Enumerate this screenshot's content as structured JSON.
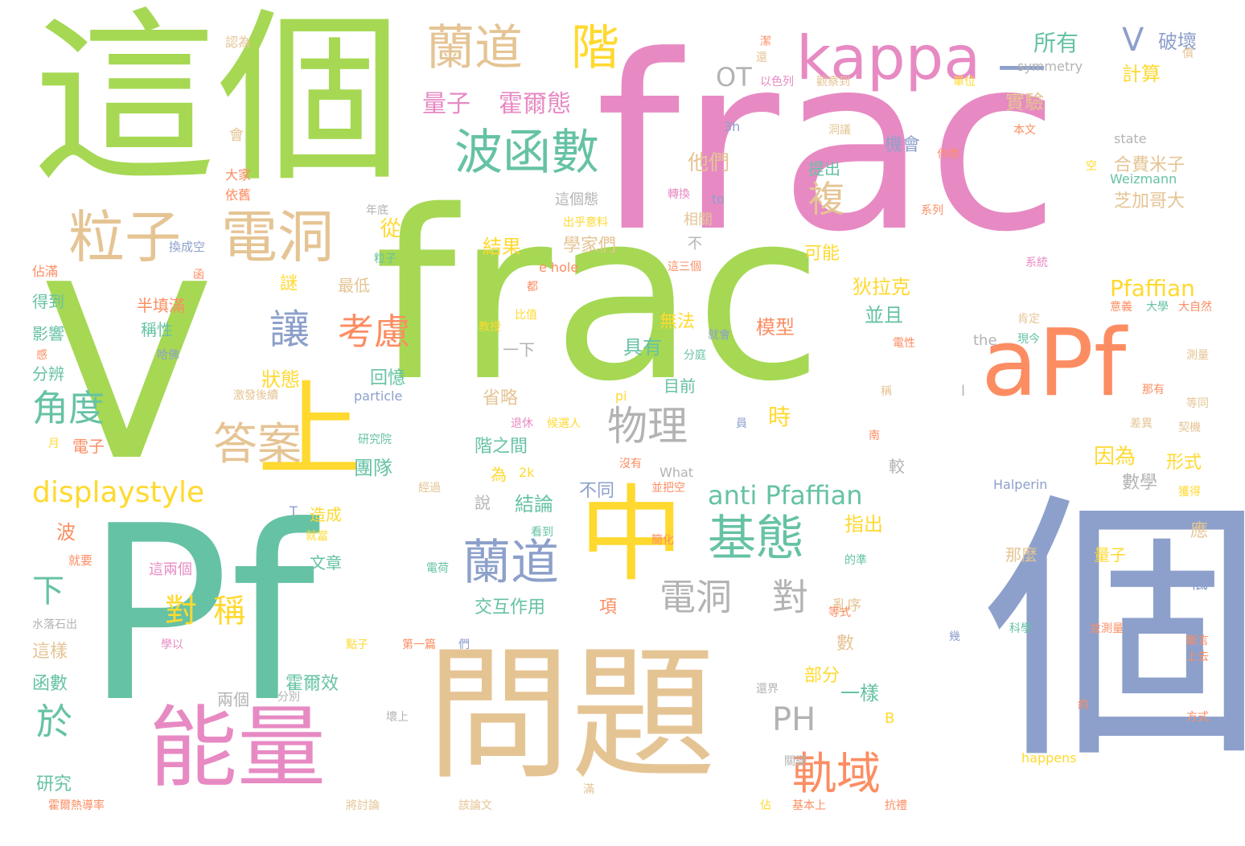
{
  "palette": {
    "green": "#a6d854",
    "teal": "#66c2a5",
    "pink": "#e78ac3",
    "blue": "#8da0cb",
    "tan": "#e5c494",
    "yellow": "#ffd92f",
    "orange": "#fc8d62",
    "gray": "#b3b3b3"
  },
  "words": [
    {
      "text": "frac"
    },
    {
      "text": "V"
    },
    {
      "text": "frac"
    },
    {
      "text": "Pf"
    },
    {
      "text": "個"
    },
    {
      "text": "這個"
    },
    {
      "text": "問題"
    },
    {
      "text": "能量"
    },
    {
      "text": "中"
    },
    {
      "text": "上"
    },
    {
      "text": "aPf"
    },
    {
      "text": "kappa"
    },
    {
      "text": "一"
    },
    {
      "text": "粒子"
    },
    {
      "text": "電洞"
    },
    {
      "text": "蘭道"
    },
    {
      "text": "階"
    },
    {
      "text": "波函數"
    },
    {
      "text": "蘭道"
    },
    {
      "text": "基態"
    },
    {
      "text": "電洞"
    },
    {
      "text": "對"
    },
    {
      "text": "答案"
    },
    {
      "text": "軌域"
    },
    {
      "text": "物理"
    },
    {
      "text": "讓"
    },
    {
      "text": "考慮"
    },
    {
      "text": "角度"
    },
    {
      "text": "displaystyle"
    },
    {
      "text": "anti Pfaffian"
    },
    {
      "text": "對"
    },
    {
      "text": "稱"
    },
    {
      "text": "於"
    },
    {
      "text": "下"
    },
    {
      "text": "PH"
    },
    {
      "text": "複"
    },
    {
      "text": "V"
    },
    {
      "text": "所有"
    },
    {
      "text": "破壞"
    },
    {
      "text": "量子"
    },
    {
      "text": "霍爾態"
    },
    {
      "text": "OT"
    },
    {
      "text": "Pfaffian"
    },
    {
      "text": "時"
    },
    {
      "text": "狀態"
    },
    {
      "text": "實驗"
    },
    {
      "text": "計算"
    },
    {
      "text": "他們"
    },
    {
      "text": "合費米子"
    },
    {
      "text": "芝加哥大"
    },
    {
      "text": "結果"
    },
    {
      "text": "學家們"
    },
    {
      "text": "因為"
    },
    {
      "text": "形式"
    },
    {
      "text": "數學"
    },
    {
      "text": "模型"
    },
    {
      "text": "並且"
    },
    {
      "text": "狄拉克"
    },
    {
      "text": "具有"
    },
    {
      "text": "結論"
    },
    {
      "text": "團隊"
    },
    {
      "text": "指出"
    },
    {
      "text": "一樣"
    },
    {
      "text": "交互作用"
    },
    {
      "text": "霍爾效"
    },
    {
      "text": "部分"
    },
    {
      "text": "研究"
    },
    {
      "text": "無法"
    },
    {
      "text": "目前"
    },
    {
      "text": "回憶"
    },
    {
      "text": "從"
    },
    {
      "text": "最低"
    },
    {
      "text": "省略"
    },
    {
      "text": "階之間"
    },
    {
      "text": "不同"
    },
    {
      "text": "為"
    },
    {
      "text": "說"
    },
    {
      "text": "波"
    },
    {
      "text": "影響"
    },
    {
      "text": "稱性"
    },
    {
      "text": "半填滿"
    },
    {
      "text": "得到"
    },
    {
      "text": "分辨"
    },
    {
      "text": "謎"
    },
    {
      "text": "相關"
    },
    {
      "text": "可能"
    },
    {
      "text": "提出"
    },
    {
      "text": "機會"
    },
    {
      "text": "這個態"
    },
    {
      "text": "那麼"
    },
    {
      "text": "量子"
    },
    {
      "text": "應"
    },
    {
      "text": "低"
    },
    {
      "text": "文章"
    },
    {
      "text": "項"
    },
    {
      "text": "亂序"
    },
    {
      "text": "數"
    },
    {
      "text": "電子"
    },
    {
      "text": "這樣"
    },
    {
      "text": "函數"
    },
    {
      "text": "兩個"
    },
    {
      "text": "這兩個"
    },
    {
      "text": "造成"
    },
    {
      "text": "一下"
    },
    {
      "text": "較"
    },
    {
      "text": "不"
    },
    {
      "text": "state"
    },
    {
      "text": "Weizmann"
    },
    {
      "text": "symmetry"
    },
    {
      "text": "Halperin"
    },
    {
      "text": "happens"
    },
    {
      "text": "particle"
    },
    {
      "text": "What"
    },
    {
      "text": "the"
    },
    {
      "text": "pi"
    },
    {
      "text": "to"
    },
    {
      "text": "3h"
    },
    {
      "text": "2k"
    },
    {
      "text": "e hole"
    },
    {
      "text": "T"
    },
    {
      "text": "l"
    },
    {
      "text": "B"
    },
    {
      "text": "認為"
    },
    {
      "text": "會"
    },
    {
      "text": "大家"
    },
    {
      "text": "依舊"
    },
    {
      "text": "年底"
    },
    {
      "text": "換成空"
    },
    {
      "text": "佔滿"
    },
    {
      "text": "函"
    },
    {
      "text": "粒子"
    },
    {
      "text": "感"
    },
    {
      "text": "哈佛"
    },
    {
      "text": "激發後續"
    },
    {
      "text": "月"
    },
    {
      "text": "研究院"
    },
    {
      "text": "經過"
    },
    {
      "text": "就當"
    },
    {
      "text": "就要"
    },
    {
      "text": "水落石出"
    },
    {
      "text": "學以"
    },
    {
      "text": "點子"
    },
    {
      "text": "第一篇"
    },
    {
      "text": "們"
    },
    {
      "text": "分別"
    },
    {
      "text": "壞上"
    },
    {
      "text": "將討論"
    },
    {
      "text": "該論文"
    },
    {
      "text": "霍爾熱導率"
    },
    {
      "text": "滿"
    },
    {
      "text": "電荷"
    },
    {
      "text": "簡化"
    },
    {
      "text": "並把空"
    },
    {
      "text": "看到"
    },
    {
      "text": "沒有"
    },
    {
      "text": "候選人"
    },
    {
      "text": "退休"
    },
    {
      "text": "比值"
    },
    {
      "text": "教授"
    },
    {
      "text": "都"
    },
    {
      "text": "出乎意料"
    },
    {
      "text": "轉換"
    },
    {
      "text": "這三個"
    },
    {
      "text": "以色列"
    },
    {
      "text": "觀察到"
    },
    {
      "text": "潔"
    },
    {
      "text": "單位"
    },
    {
      "text": "洞議"
    },
    {
      "text": "本文"
    },
    {
      "text": "作用"
    },
    {
      "text": "系列"
    },
    {
      "text": "系統"
    },
    {
      "text": "空"
    },
    {
      "text": "大學"
    },
    {
      "text": "大自然"
    },
    {
      "text": "意義"
    },
    {
      "text": "肯定"
    },
    {
      "text": "現今"
    },
    {
      "text": "電性"
    },
    {
      "text": "稱"
    },
    {
      "text": "南"
    },
    {
      "text": "測量"
    },
    {
      "text": "等同"
    },
    {
      "text": "那有"
    },
    {
      "text": "差異"
    },
    {
      "text": "契機"
    },
    {
      "text": "獲得"
    },
    {
      "text": "幾"
    },
    {
      "text": "科學"
    },
    {
      "text": "並測量"
    },
    {
      "text": "斷言"
    },
    {
      "text": "上去"
    },
    {
      "text": "約"
    },
    {
      "text": "方式"
    },
    {
      "text": "的準"
    },
    {
      "text": "等式"
    },
    {
      "text": "就會"
    },
    {
      "text": "分庭"
    },
    {
      "text": "員"
    },
    {
      "text": "佔"
    },
    {
      "text": "關鍵"
    },
    {
      "text": "還界"
    },
    {
      "text": "基本上"
    },
    {
      "text": "抗禮"
    },
    {
      "text": "償"
    },
    {
      "text": "還"
    }
  ]
}
